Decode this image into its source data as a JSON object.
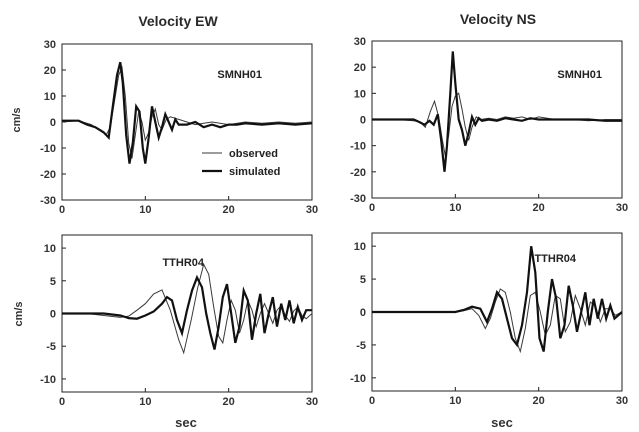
{
  "chart_data": [
    {
      "type": "line",
      "title": "Velocity EW",
      "station": "SMNH01",
      "ylabel": "cm/s",
      "xlabel": "",
      "xlim": [
        0,
        30
      ],
      "ylim": [
        -30,
        30
      ],
      "xticks": [
        0,
        10,
        20,
        30
      ],
      "yticks": [
        -30,
        -20,
        -10,
        0,
        10,
        20,
        30
      ],
      "legend": {
        "entries": [
          "observed",
          "simulated"
        ],
        "position": "lower-center"
      },
      "series": [
        {
          "name": "observed",
          "style": "thin",
          "x": [
            0,
            2,
            3.5,
            4.5,
            5.3,
            5.8,
            6.3,
            6.8,
            7.2,
            7.6,
            8.0,
            8.4,
            8.8,
            9.2,
            9.6,
            10.0,
            10.4,
            10.8,
            11.2,
            11.6,
            12.0,
            12.5,
            13.0,
            14,
            15,
            16,
            17,
            18,
            20,
            22,
            24,
            26,
            28,
            30
          ],
          "y": [
            0,
            0.5,
            -1,
            -3,
            -5,
            -2,
            8,
            18,
            21,
            10,
            -8,
            -14,
            -5,
            4,
            0,
            -7,
            -4,
            2,
            5,
            -1,
            -3,
            1,
            2,
            1,
            0,
            -1,
            -0.5,
            0,
            -1,
            0,
            -0.5,
            0,
            -0.5,
            0
          ]
        },
        {
          "name": "simulated",
          "style": "thick",
          "x": [
            0,
            2,
            3,
            4,
            5,
            5.6,
            6.1,
            6.6,
            7.0,
            7.3,
            7.7,
            8.1,
            8.5,
            8.9,
            9.3,
            9.7,
            10.0,
            10.4,
            10.8,
            11.2,
            11.6,
            12.0,
            12.4,
            12.8,
            13.2,
            13.6,
            14,
            15,
            16,
            17,
            18,
            19,
            20,
            21,
            22,
            24,
            26,
            28,
            30
          ],
          "y": [
            0.5,
            0.5,
            -1,
            -2,
            -4,
            -6,
            6,
            18,
            23,
            15,
            -5,
            -16,
            -8,
            6,
            4,
            -10,
            -16,
            -6,
            6,
            0,
            -6,
            -2,
            3,
            0,
            -3,
            1,
            -1,
            -1,
            0,
            -2,
            -1,
            -2,
            -1,
            -1,
            -0.5,
            -1,
            -0.5,
            -1,
            -0.5
          ]
        }
      ]
    },
    {
      "type": "line",
      "title": "Velocity NS",
      "station": "SMNH01",
      "ylabel": "",
      "xlabel": "",
      "xlim": [
        0,
        30
      ],
      "ylim": [
        -30,
        30
      ],
      "xticks": [
        0,
        10,
        20,
        30
      ],
      "yticks": [
        -30,
        -20,
        -10,
        0,
        10,
        20,
        30
      ],
      "series": [
        {
          "name": "observed",
          "style": "thin",
          "x": [
            0,
            3,
            5,
            5.8,
            6.4,
            7.0,
            7.5,
            8.0,
            8.4,
            8.8,
            9.2,
            9.6,
            10.0,
            10.4,
            10.8,
            11.2,
            11.6,
            12.0,
            12.5,
            13,
            14,
            15,
            16,
            17,
            18,
            19,
            20,
            22,
            24,
            26,
            28,
            30
          ],
          "y": [
            0,
            0,
            -0.5,
            -1,
            -3,
            3,
            7,
            1,
            -7,
            -14,
            -6,
            5,
            9,
            10,
            4,
            -3,
            -8,
            -3,
            1,
            0,
            0.5,
            0,
            1,
            0.5,
            1,
            0,
            1,
            0,
            0,
            -0.5,
            0,
            0
          ]
        },
        {
          "name": "simulated",
          "style": "thick",
          "x": [
            0,
            3,
            5,
            5.7,
            6.3,
            6.9,
            7.4,
            7.9,
            8.3,
            8.7,
            9.0,
            9.4,
            9.7,
            10.0,
            10.4,
            10.8,
            11.2,
            11.6,
            12.0,
            12.4,
            12.8,
            13.2,
            14,
            15,
            16,
            17,
            18,
            19,
            20,
            22,
            24,
            26,
            28,
            30
          ],
          "y": [
            0,
            0,
            0,
            -1,
            -2,
            -0.5,
            -2,
            2,
            -8,
            -20,
            -10,
            10,
            26,
            14,
            0,
            -4,
            -10,
            -5,
            1,
            -2,
            0.5,
            -0.5,
            0,
            -0.5,
            0.5,
            0,
            -0.5,
            0.5,
            0,
            0,
            0,
            0,
            -0.5,
            -0.5
          ]
        }
      ]
    },
    {
      "type": "line",
      "title": "",
      "station": "TTHR04",
      "ylabel": "cm/s",
      "xlabel": "sec",
      "xlim": [
        0,
        30
      ],
      "ylim": [
        -12,
        12
      ],
      "xticks": [
        0,
        10,
        20,
        30
      ],
      "yticks": [
        -10,
        -5,
        0,
        5,
        10
      ],
      "series": [
        {
          "name": "observed",
          "style": "thin",
          "x": [
            0,
            3,
            5,
            7,
            8,
            9,
            10,
            11,
            12,
            13,
            14,
            14.6,
            15.5,
            16.3,
            17.0,
            17.6,
            18.2,
            18.8,
            19.3,
            19.8,
            20.3,
            20.8,
            21.3,
            21.8,
            22.3,
            22.8,
            23.3,
            23.8,
            24.3,
            24.8,
            25.3,
            25.8,
            26.3,
            26.8,
            27.3,
            27.8,
            28.3,
            28.8,
            29.3,
            30
          ],
          "y": [
            0,
            0,
            -0.3,
            -0.6,
            -0.4,
            0.5,
            1.5,
            3.0,
            3.6,
            0.5,
            -4,
            -6,
            -1,
            4,
            7.5,
            6,
            1,
            -3.5,
            -4.5,
            -1,
            2,
            0.5,
            -3,
            -1,
            2,
            0.5,
            -2,
            0,
            1.5,
            0,
            -1.5,
            0.5,
            1.2,
            -0.3,
            -1.2,
            0.4,
            1.0,
            -0.3,
            -0.8,
            0
          ]
        },
        {
          "name": "simulated",
          "style": "thick",
          "x": [
            0,
            3,
            5,
            7,
            8,
            9,
            10,
            11,
            12,
            12.6,
            13.2,
            13.8,
            14.4,
            15.0,
            15.6,
            16.2,
            16.8,
            17.3,
            17.8,
            18.3,
            18.8,
            19.3,
            19.8,
            20.3,
            20.8,
            21.3,
            21.8,
            22.3,
            22.8,
            23.3,
            23.8,
            24.3,
            24.8,
            25.3,
            25.8,
            26.3,
            26.8,
            27.3,
            27.8,
            28.3,
            28.8,
            29.3,
            30
          ],
          "y": [
            0,
            0,
            0,
            -0.3,
            -0.7,
            -0.8,
            -0.3,
            0.3,
            1.5,
            2.5,
            2.0,
            -1.0,
            -3.0,
            0.5,
            3.5,
            5.5,
            4.0,
            0,
            -3,
            -5.5,
            -2,
            2.5,
            4.5,
            0,
            -4.5,
            -2,
            3.5,
            2,
            -4,
            0,
            3,
            -3,
            0,
            2.5,
            -2,
            1.5,
            -1,
            2,
            -1.5,
            1,
            -1,
            0.5,
            0.5
          ]
        }
      ]
    },
    {
      "type": "line",
      "title": "",
      "station": "TTHR04",
      "ylabel": "",
      "xlabel": "sec",
      "xlim": [
        0,
        30
      ],
      "ylim": [
        -12,
        12
      ],
      "xticks": [
        0,
        10,
        20,
        30
      ],
      "yticks": [
        -10,
        -5,
        0,
        5,
        10
      ],
      "series": [
        {
          "name": "observed",
          "style": "thin",
          "x": [
            0,
            5,
            8,
            10,
            11,
            12,
            12.8,
            13.6,
            14.2,
            14.8,
            15.4,
            16.0,
            16.6,
            17.2,
            17.8,
            18.4,
            19.0,
            19.6,
            20.2,
            20.8,
            21.4,
            22.0,
            22.6,
            23.2,
            23.8,
            24.4,
            25.0,
            25.6,
            26.2,
            26.8,
            27.4,
            28.0,
            28.6,
            29.2,
            30
          ],
          "y": [
            0,
            0,
            0,
            0,
            0.2,
            0.5,
            -0.5,
            -2.5,
            -1.0,
            1.5,
            3.5,
            3.0,
            0,
            -4.0,
            -6.0,
            -2.5,
            2.5,
            3.0,
            0,
            -3.5,
            -2,
            2.5,
            2,
            -3,
            -1.5,
            2.5,
            0.5,
            -2,
            1.5,
            1,
            -1.5,
            0.5,
            0.5,
            -0.5,
            0
          ]
        },
        {
          "name": "simulated",
          "style": "thick",
          "x": [
            0,
            5,
            8,
            10,
            11,
            12,
            13,
            13.8,
            14.4,
            15.0,
            15.6,
            16.2,
            16.8,
            17.4,
            18.0,
            18.6,
            19.1,
            19.6,
            20.1,
            20.6,
            21.1,
            21.6,
            22.1,
            22.6,
            23.1,
            23.6,
            24.1,
            24.6,
            25.1,
            25.6,
            26.1,
            26.6,
            27.1,
            27.6,
            28.1,
            28.6,
            29.1,
            30
          ],
          "y": [
            0,
            0,
            0,
            0,
            0.3,
            0.8,
            0.5,
            -1.5,
            0.5,
            3.0,
            2.0,
            -1,
            -4,
            -5,
            -2,
            3,
            10,
            6,
            -4,
            -6,
            0,
            5,
            2,
            -4,
            -2,
            4,
            1,
            -3,
            0,
            3,
            -2,
            2,
            -1,
            2,
            -1,
            1,
            -1,
            0
          ]
        }
      ]
    }
  ]
}
